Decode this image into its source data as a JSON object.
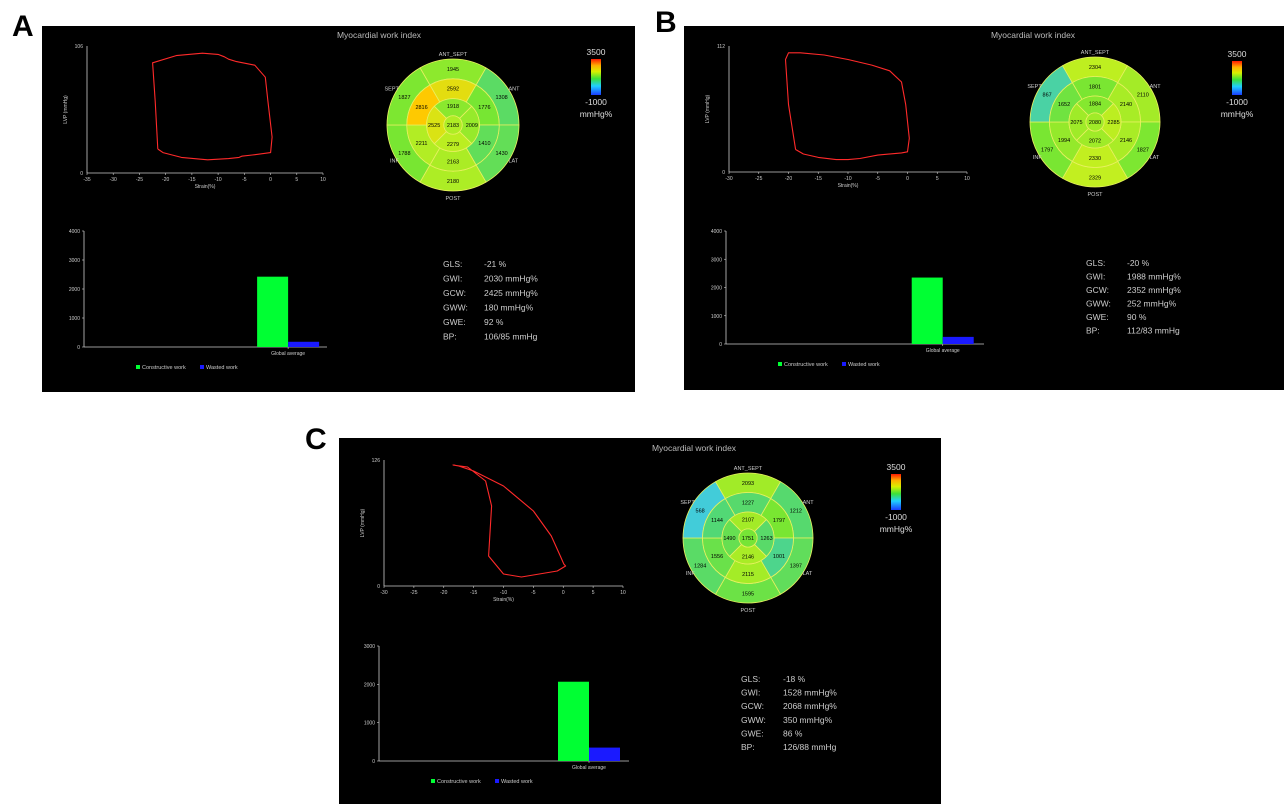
{
  "panels": [
    {
      "letter": "A",
      "title": "Myocardial work index",
      "loop_chart": {
        "ylabel": "LVP (mmHg)",
        "xlabel": "Strain(%)",
        "y_max_label": "106",
        "y_min_label": "0",
        "x_ticks": [
          "-35",
          "-30",
          "-25",
          "-20",
          "-15",
          "-10",
          "-5",
          "0",
          "5",
          "10"
        ]
      },
      "bullseye": {
        "top_label": "ANT_SEPT",
        "bottom_label": "POST",
        "left_top_label": "SEPT",
        "left_bottom_label": "INF",
        "right_top_label": "ANT",
        "right_bottom_label": "LAT",
        "segments": {
          "basal": [
            "1945",
            "1308",
            "1430",
            "2180",
            "1788",
            "1827"
          ],
          "mid": [
            "2592",
            "1776",
            "1410",
            "2163",
            "2211",
            "2816"
          ],
          "apical": [
            "1918",
            "2009",
            "2279",
            "2525"
          ],
          "apex": "2183"
        }
      },
      "scale": {
        "max": "3500",
        "min": "-1000",
        "unit": "mmHg%"
      },
      "bar_chart": {
        "y_ticks": [
          "0",
          "1000",
          "2000",
          "3000",
          "4000"
        ],
        "category": "Global average",
        "legend_constructive": "Constructive work",
        "legend_wasted": "Wasted work"
      },
      "stats": [
        {
          "label": "GLS:",
          "value": "-21 %"
        },
        {
          "label": "GWI:",
          "value": "2030 mmHg%"
        },
        {
          "label": "GCW:",
          "value": "2425 mmHg%"
        },
        {
          "label": "GWW:",
          "value": "180 mmHg%"
        },
        {
          "label": "GWE:",
          "value": "92 %"
        },
        {
          "label": "BP:",
          "value": "106/85 mmHg"
        }
      ]
    },
    {
      "letter": "B",
      "title": "Myocardial work index",
      "loop_chart": {
        "ylabel": "LVP (mmHg)",
        "xlabel": "Strain(%)",
        "y_max_label": "112",
        "y_min_label": "0",
        "x_ticks": [
          "-30",
          "-25",
          "-20",
          "-15",
          "-10",
          "-5",
          "0",
          "5",
          "10"
        ]
      },
      "bullseye": {
        "top_label": "ANT_SEPT",
        "bottom_label": "POST",
        "left_top_label": "SEPT",
        "left_bottom_label": "INF",
        "right_top_label": "ANT",
        "right_bottom_label": "LAT",
        "segments": {
          "basal": [
            "2304",
            "2110",
            "1827",
            "2329",
            "1797",
            "867"
          ],
          "mid": [
            "1801",
            "2140",
            "2146",
            "2330",
            "1994",
            "1652"
          ],
          "apical": [
            "1884",
            "2285",
            "2072",
            "2075"
          ],
          "apex": "2080"
        }
      },
      "scale": {
        "max": "3500",
        "min": "-1000",
        "unit": "mmHg%"
      },
      "bar_chart": {
        "y_ticks": [
          "0",
          "1000",
          "2000",
          "3000",
          "4000"
        ],
        "category": "Global average",
        "legend_constructive": "Constructive work",
        "legend_wasted": "Wasted work"
      },
      "stats": [
        {
          "label": "GLS:",
          "value": "-20 %"
        },
        {
          "label": "GWI:",
          "value": "1988 mmHg%"
        },
        {
          "label": "GCW:",
          "value": "2352 mmHg%"
        },
        {
          "label": "GWW:",
          "value": "252 mmHg%"
        },
        {
          "label": "GWE:",
          "value": "90 %"
        },
        {
          "label": "BP:",
          "value": "112/83 mmHg"
        }
      ]
    },
    {
      "letter": "C",
      "title": "Myocardial work index",
      "loop_chart": {
        "ylabel": "LVP (mmHg)",
        "xlabel": "Strain(%)",
        "y_max_label": "126",
        "y_min_label": "0",
        "x_ticks": [
          "-30",
          "-25",
          "-20",
          "-15",
          "-10",
          "-5",
          "0",
          "5",
          "10"
        ]
      },
      "bullseye": {
        "top_label": "ANT_SEPT",
        "bottom_label": "POST",
        "left_top_label": "SEPT",
        "left_bottom_label": "INF",
        "right_top_label": "ANT",
        "right_bottom_label": "LAT",
        "segments": {
          "basal": [
            "2093",
            "1212",
            "1397",
            "1595",
            "1284",
            "568"
          ],
          "mid": [
            "1227",
            "1797",
            "1001",
            "2115",
            "1556",
            "1144"
          ],
          "apical": [
            "2107",
            "1263",
            "2146",
            "1490"
          ],
          "apex": "1751"
        }
      },
      "scale": {
        "max": "3500",
        "min": "-1000",
        "unit": "mmHg%"
      },
      "bar_chart": {
        "y_ticks": [
          "0",
          "1000",
          "2000",
          "3000"
        ],
        "category": "Global average",
        "legend_constructive": "Constructive work",
        "legend_wasted": "Wasted work"
      },
      "stats": [
        {
          "label": "GLS:",
          "value": "-18 %"
        },
        {
          "label": "GWI:",
          "value": "1528 mmHg%"
        },
        {
          "label": "GCW:",
          "value": "2068 mmHg%"
        },
        {
          "label": "GWW:",
          "value": "350 mmHg%"
        },
        {
          "label": "GWE:",
          "value": "86 %"
        },
        {
          "label": "BP:",
          "value": "126/88 mmHg"
        }
      ]
    }
  ],
  "chart_data": [
    {
      "type": "line",
      "panel": "A",
      "title": "",
      "xlabel": "Strain(%)",
      "ylabel": "LVP (mmHg)",
      "xlim": [
        -35,
        10
      ],
      "ylim": [
        0,
        106
      ],
      "series": [
        {
          "x": [
            -21.5,
            -20.5,
            -17,
            -12,
            -8,
            -6,
            -5.5,
            -3.5,
            0,
            0.3,
            -0.5,
            -1,
            -3,
            -6.5,
            -8,
            -8.8,
            -10,
            -13,
            -18,
            -22.5,
            -22,
            -21.5
          ],
          "y": [
            20,
            17,
            13,
            11,
            12,
            13,
            14,
            15,
            17,
            30,
            60,
            80,
            90,
            93,
            95,
            97,
            99,
            100,
            98,
            92,
            60,
            20
          ]
        }
      ]
    },
    {
      "type": "line",
      "panel": "B",
      "title": "",
      "xlabel": "Strain(%)",
      "ylabel": "LVP (mmHg)",
      "xlim": [
        -30,
        10
      ],
      "ylim": [
        0,
        112
      ],
      "series": [
        {
          "x": [
            -18.8,
            -17.5,
            -15,
            -12,
            -10,
            -8,
            -5,
            -1,
            0,
            0.3,
            -0.3,
            -1,
            -3,
            -6,
            -10,
            -14,
            -18,
            -20,
            -20.5,
            -20,
            -18.8
          ],
          "y": [
            20,
            16,
            13,
            11,
            11,
            12,
            15,
            17,
            18,
            30,
            60,
            80,
            90,
            95,
            100,
            104,
            106,
            106,
            100,
            60,
            20
          ]
        }
      ]
    },
    {
      "type": "line",
      "panel": "C",
      "title": "",
      "xlabel": "Strain(%)",
      "ylabel": "LVP (mmHg)",
      "xlim": [
        -30,
        10
      ],
      "ylim": [
        0,
        126
      ],
      "series": [
        {
          "x": [
            -18.5,
            -16,
            -13,
            -12,
            -12.5,
            -10,
            -7,
            -3,
            -1,
            0.4,
            0.1,
            -0.5,
            -2,
            -5,
            -10,
            -15,
            -17.5,
            -18.5
          ],
          "y": [
            121,
            119,
            105,
            80,
            30,
            12,
            9,
            13,
            15,
            20,
            22,
            30,
            50,
            75,
            100,
            115,
            120,
            121
          ]
        }
      ]
    },
    {
      "type": "bar",
      "panel": "A",
      "title": "",
      "categories": [
        "Global average"
      ],
      "ylim": [
        0,
        4000
      ],
      "series": [
        {
          "name": "Constructive work",
          "values": [
            2425
          ]
        },
        {
          "name": "Wasted work",
          "values": [
            180
          ]
        }
      ]
    },
    {
      "type": "bar",
      "panel": "B",
      "title": "",
      "categories": [
        "Global average"
      ],
      "ylim": [
        0,
        4000
      ],
      "series": [
        {
          "name": "Constructive work",
          "values": [
            2352
          ]
        },
        {
          "name": "Wasted work",
          "values": [
            252
          ]
        }
      ]
    },
    {
      "type": "bar",
      "panel": "C",
      "title": "",
      "categories": [
        "Global average"
      ],
      "ylim": [
        0,
        3000
      ],
      "series": [
        {
          "name": "Constructive work",
          "values": [
            2068
          ]
        },
        {
          "name": "Wasted work",
          "values": [
            350
          ]
        }
      ]
    },
    {
      "type": "heatmap",
      "panel": "A",
      "title": "",
      "value_range": [
        -1000,
        3500
      ],
      "segments": {
        "basal": [
          1945,
          1308,
          1430,
          2180,
          1788,
          1827
        ],
        "mid": [
          2592,
          1776,
          1410,
          2163,
          2211,
          2816
        ],
        "apical": [
          1918,
          2009,
          2279,
          2525
        ],
        "apex": 2183
      }
    },
    {
      "type": "heatmap",
      "panel": "B",
      "title": "",
      "value_range": [
        -1000,
        3500
      ],
      "segments": {
        "basal": [
          2304,
          2110,
          1827,
          2329,
          1797,
          867
        ],
        "mid": [
          1801,
          2140,
          2146,
          2330,
          1994,
          1652
        ],
        "apical": [
          1884,
          2285,
          2072,
          2075
        ],
        "apex": 2080
      }
    },
    {
      "type": "heatmap",
      "panel": "C",
      "title": "",
      "value_range": [
        -1000,
        3500
      ],
      "segments": {
        "basal": [
          2093,
          1212,
          1397,
          1595,
          1284,
          568
        ],
        "mid": [
          1227,
          1797,
          1001,
          2115,
          1556,
          1144
        ],
        "apical": [
          2107,
          1263,
          2146,
          1490
        ],
        "apex": 1751
      }
    }
  ],
  "colors": {
    "panel_bg": "#000000",
    "loop_line": "#ff2a2a",
    "constructive": "#00ff33",
    "wasted": "#1a1aff",
    "axis": "#cccccc",
    "bullseye_base": "#7fe43a"
  }
}
